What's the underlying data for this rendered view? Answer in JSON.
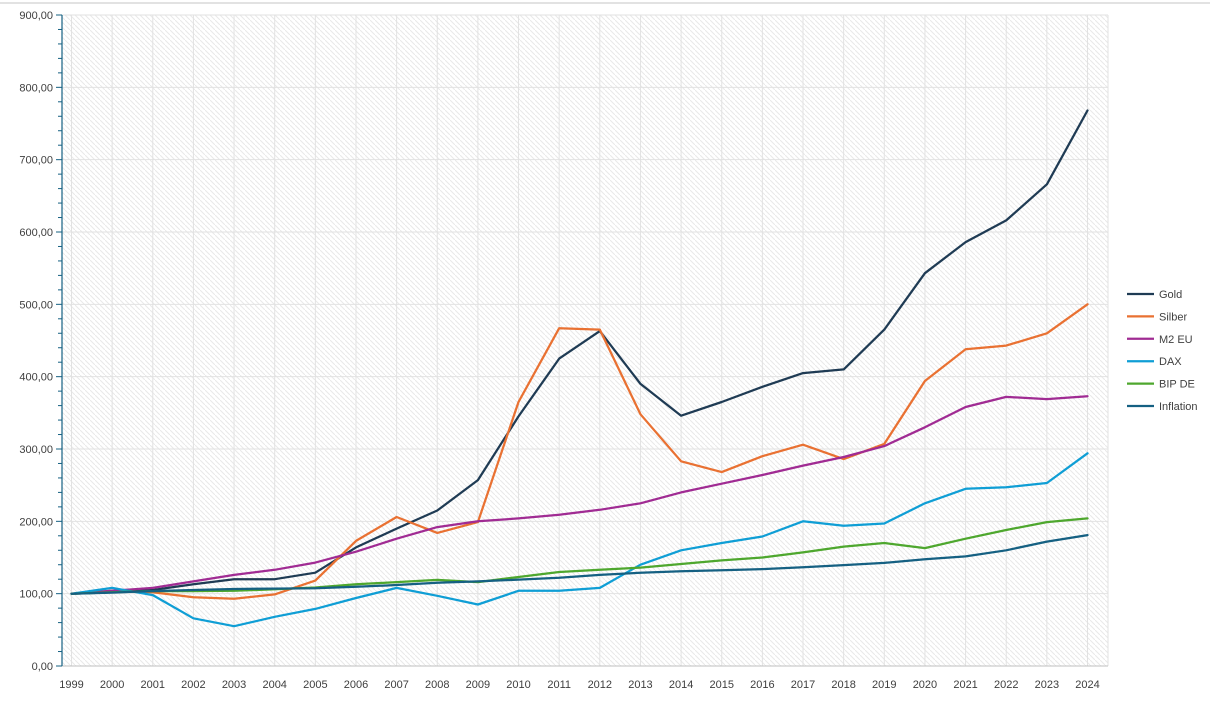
{
  "chart_data": {
    "type": "line",
    "title": "",
    "xlabel": "",
    "ylabel": "",
    "ylim": [
      0,
      900
    ],
    "y_major_step": 100,
    "y_minor_step": 20,
    "grid": true,
    "plot_background": "diagonal-hatch",
    "legend_position": "right",
    "number_format": "german-decimal-comma",
    "y_tick_labels": [
      "0,00",
      "100,00",
      "200,00",
      "300,00",
      "400,00",
      "500,00",
      "600,00",
      "700,00",
      "800,00",
      "900,00"
    ],
    "x_labels": [
      "1999",
      "2000",
      "2001",
      "2002",
      "2003",
      "2004",
      "2005",
      "2006",
      "2007",
      "2008",
      "2009",
      "2010",
      "2011",
      "2012",
      "2013",
      "2014",
      "2015",
      "2016",
      "2017",
      "2018",
      "2019",
      "2020",
      "2021",
      "2022",
      "2023",
      "2024"
    ],
    "series": [
      {
        "name": "Gold",
        "color": "#1F3B54",
        "values": [
          100,
          102,
          105,
          113,
          120,
          120,
          129,
          164,
          190,
          215,
          257,
          345,
          425,
          463,
          390,
          346,
          365,
          386,
          405,
          410,
          465,
          543,
          586,
          616,
          666,
          768
        ]
      },
      {
        "name": "Silber",
        "color": "#E97132",
        "values": [
          100,
          104,
          102,
          95,
          93,
          99,
          118,
          173,
          206,
          184,
          199,
          365,
          467,
          465,
          348,
          283,
          268,
          290,
          306,
          286,
          307,
          394,
          438,
          443,
          460,
          500
        ]
      },
      {
        "name": "M2 EU",
        "color": "#A02B93",
        "values": [
          100,
          104,
          108,
          117,
          126,
          133,
          143,
          158,
          176,
          192,
          200,
          204,
          209,
          216,
          225,
          240,
          252,
          264,
          277,
          289,
          304,
          330,
          358,
          372,
          369,
          373
        ]
      },
      {
        "name": "DAX",
        "color": "#0F9ED5",
        "values": [
          100,
          108,
          98,
          66,
          55,
          68,
          79,
          94,
          108,
          97,
          85,
          104,
          104,
          108,
          140,
          160,
          170,
          179,
          200,
          194,
          197,
          225,
          245,
          247,
          253,
          294
        ]
      },
      {
        "name": "BIP DE",
        "color": "#4EA72E",
        "values": [
          100,
          102,
          103.5,
          103.5,
          104,
          106,
          108.5,
          113,
          116,
          119,
          116,
          123,
          130,
          133,
          136,
          141,
          146,
          150,
          157,
          165,
          170,
          163,
          176,
          188,
          199,
          204
        ]
      },
      {
        "name": "Inflation",
        "color": "#156082",
        "values": [
          100,
          101.5,
          103.5,
          105,
          106.5,
          107,
          107.5,
          109.5,
          112,
          115,
          117,
          119.5,
          122,
          126,
          129,
          131,
          132.5,
          134,
          136.5,
          139.5,
          142.5,
          147.5,
          151.5,
          160,
          172,
          181
        ]
      }
    ],
    "colors": {
      "axis_line": "#156082",
      "x_axis_line": "#bfbfbf",
      "gridline": "#e2e2e2",
      "hatch": "#e9e9e9",
      "tick_label": "#3e3e3e",
      "top_border": "#d9d9d9"
    }
  }
}
